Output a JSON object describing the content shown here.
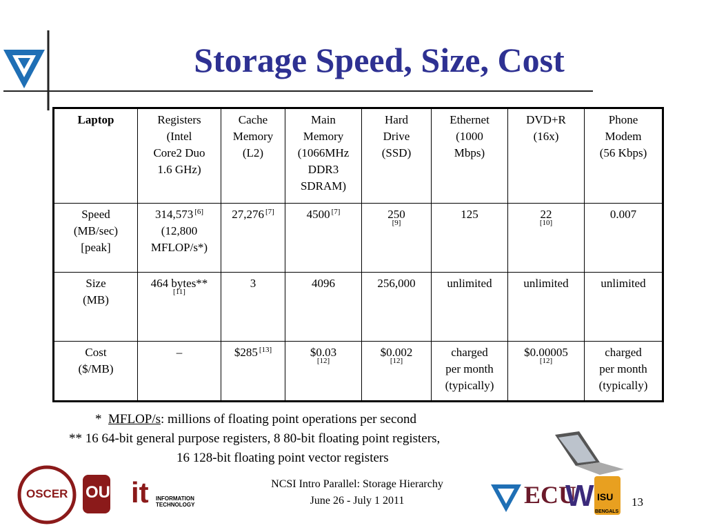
{
  "title": "Storage Speed, Size, Cost",
  "table": {
    "rows": [
      [
        {
          "lines": [
            "Laptop"
          ],
          "emphasis": "bold"
        },
        {
          "lines": [
            "Registers",
            "(Intel",
            "Core2 Duo",
            "1.6 GHz)"
          ]
        },
        {
          "lines": [
            "Cache",
            "Memory",
            "(L2)"
          ]
        },
        {
          "lines": [
            "Main",
            "Memory",
            "(1066MHz",
            "DDR3",
            "SDRAM)"
          ]
        },
        {
          "lines": [
            "Hard",
            "Drive",
            "(SSD)"
          ]
        },
        {
          "lines": [
            "Ethernet",
            "(1000",
            "Mbps)"
          ]
        },
        {
          "lines": [
            "DVD+R",
            "(16x)"
          ]
        },
        {
          "lines": [
            "Phone",
            "Modem",
            "(56 Kbps)"
          ]
        }
      ],
      [
        {
          "lines": [
            "Speed",
            "(MB/sec)",
            "[peak]"
          ]
        },
        {
          "lines": [
            "314,573",
            "(12,800",
            "MFLOP/s*)"
          ],
          "ref": "[6]",
          "ref_style": "sup"
        },
        {
          "lines": [
            "27,276"
          ],
          "ref": "[7]",
          "ref_style": "sup"
        },
        {
          "lines": [
            "4500"
          ],
          "ref": "[7]",
          "ref_style": "sup"
        },
        {
          "lines": [
            "250"
          ],
          "ref": "[9]",
          "ref_style": "sub"
        },
        {
          "lines": [
            "125"
          ]
        },
        {
          "lines": [
            "22"
          ],
          "ref": "[10]",
          "ref_style": "sub"
        },
        {
          "lines": [
            "0.007"
          ]
        }
      ],
      [
        {
          "lines": [
            "Size",
            "(MB)"
          ]
        },
        {
          "lines": [
            "464 bytes**"
          ],
          "ref": "[11]",
          "ref_style": "sub"
        },
        {
          "lines": [
            "3"
          ]
        },
        {
          "lines": [
            "4096"
          ]
        },
        {
          "lines": [
            "256,000"
          ],
          "emphasis": "small"
        },
        {
          "lines": [
            "unlimited"
          ]
        },
        {
          "lines": [
            "unlimited"
          ]
        },
        {
          "lines": [
            "unlimited"
          ]
        }
      ],
      [
        {
          "lines": [
            "Cost",
            "($/MB)"
          ]
        },
        {
          "lines": [
            "–"
          ],
          "emphasis": "low"
        },
        {
          "lines": [
            "$285"
          ],
          "ref": "[13]",
          "ref_style": "sup"
        },
        {
          "lines": [
            "$0.03"
          ],
          "ref": "[12]",
          "ref_style": "sub"
        },
        {
          "lines": [
            "$0.002"
          ],
          "ref": "[12]",
          "ref_style": "sub"
        },
        {
          "lines": [
            "charged",
            "per month",
            "(typically)"
          ]
        },
        {
          "lines": [
            "$0.00005"
          ],
          "ref": "[12]",
          "ref_style": "sub"
        },
        {
          "lines": [
            "charged",
            "per month",
            "(typically)"
          ]
        }
      ]
    ]
  },
  "footnotes": {
    "line1": {
      "mark": "*",
      "term": "MFLOP/s",
      "text": ": millions of floating point operations per second"
    },
    "line2": "** 16 64-bit general purpose registers, 8 80-bit floating point registers,",
    "line3": "16 128-bit floating point vector registers"
  },
  "footer": {
    "line1": "NCSI Intro Parallel: Storage Hierarchy",
    "line2": "June 26 - July 1 2011",
    "page": "13"
  },
  "logos": {
    "oscer": "OSCER",
    "ou": "OU",
    "it": "it",
    "it_text": "INFORMATION TECHNOLOGY",
    "ecu": "ECU",
    "w": "W",
    "isu": "ISU",
    "bengals": "BENGALS"
  }
}
